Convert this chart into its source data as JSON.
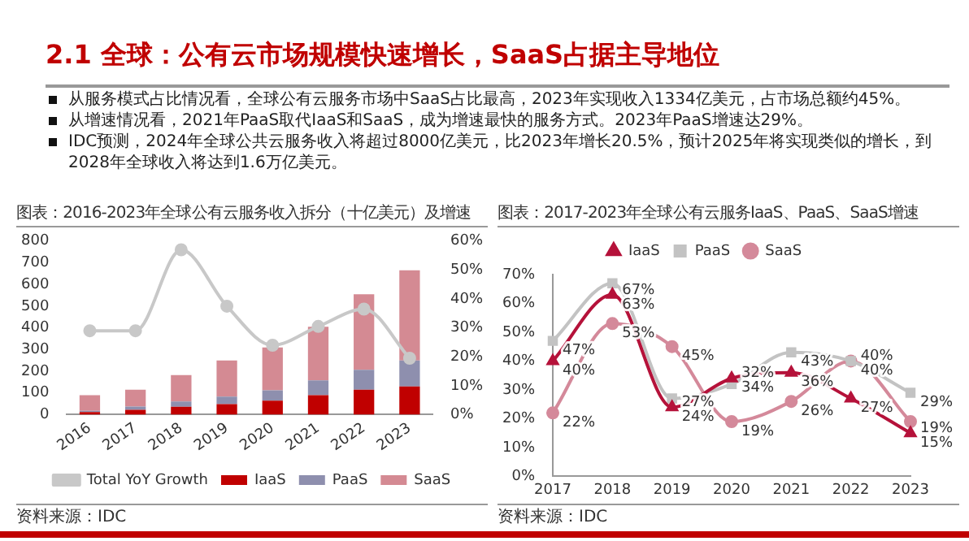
{
  "chart_data": [
    {
      "type": "other",
      "title": "2.1 全球：公有云市场规模快速增长，SaaS占据主导地位",
      "annotations": [
        "从服务模式占比情况看，全球公有云服务市场中SaaS占比最高，2023年实现收入1334亿美元，占市场总额约45%。",
        "从增速情况看，2021年PaaS取代IaaS和SaaS，成为增速最快的服务方式。2023年PaaS增速达29%。",
        "IDC预测，2024年全球公共云服务收入将超过8000亿美元，比2023年增长20.5%，预计2025年将实现类似的增长，到2028年全球收入将达到1.6万亿美元。"
      ]
    },
    {
      "type": "bar",
      "title": "图表：2016-2023年全球公有云服务收入拆分（十亿美元）及增速",
      "annotations": [
        "资料来源：IDC"
      ],
      "stacked": true,
      "grid": false,
      "legend": "bottom",
      "categories": [
        "2016",
        "2017",
        "2018",
        "2019",
        "2020",
        "2021",
        "2022",
        "2023"
      ],
      "series": [
        {
          "name": "IaaS",
          "color": "#c00000",
          "values": [
            12,
            22,
            36,
            48,
            64,
            90,
            115,
            130
          ]
        },
        {
          "name": "PaaS",
          "color": "#8e8fae",
          "values": [
            6,
            15,
            25,
            35,
            48,
            68,
            92,
            120
          ]
        },
        {
          "name": "SaaS",
          "color": "#d48a93",
          "values": [
            72,
            78,
            121,
            167,
            198,
            247,
            348,
            415
          ]
        },
        {
          "name": "Total YoY Growth",
          "type": "line",
          "axis": "y2",
          "marker": "circle",
          "color": "#c8c8c8",
          "values": [
            29,
            29,
            57,
            37.5,
            24,
            30.5,
            36.5,
            19.5
          ]
        }
      ],
      "ylim": [
        0,
        800
      ],
      "yticks": [
        0,
        100,
        200,
        300,
        400,
        500,
        600,
        700,
        800
      ],
      "y2lim": [
        0,
        60
      ],
      "y2ticks": [
        {
          "value": 0,
          "label": "0%"
        },
        {
          "value": 10,
          "label": "10%"
        },
        {
          "value": 20,
          "label": "20%"
        },
        {
          "value": 30,
          "label": "30%"
        },
        {
          "value": 40,
          "label": "40%"
        },
        {
          "value": 50,
          "label": "50%"
        },
        {
          "value": 60,
          "label": "60%"
        }
      ]
    },
    {
      "type": "line",
      "title": "图表：2017-2023年全球公有云服务IaaS、PaaS、SaaS增速",
      "annotations": [
        "资料来源：IDC"
      ],
      "grid": false,
      "legend": "top",
      "categories": [
        "2017",
        "2018",
        "2019",
        "2020",
        "2021",
        "2022",
        "2023"
      ],
      "series": [
        {
          "name": "IaaS",
          "color": "#b5123a",
          "marker": "triangle",
          "values": [
            40,
            63,
            24,
            34,
            36,
            27,
            15
          ],
          "value_labels": [
            "40%",
            "63%",
            "24%",
            "34%",
            "36%",
            "27%",
            "15%"
          ]
        },
        {
          "name": "PaaS",
          "color": "#c3c3c3",
          "marker": "square",
          "values": [
            47,
            67,
            27,
            32,
            43,
            40,
            29
          ],
          "value_labels": [
            "47%",
            "67%",
            "27%",
            "32%",
            "43%",
            "40%",
            "29%"
          ]
        },
        {
          "name": "SaaS",
          "color": "#d4899a",
          "marker": "circle",
          "values": [
            22,
            53,
            45,
            19,
            26,
            40,
            19
          ],
          "value_labels": [
            "22%",
            "53%",
            "45%",
            "19%",
            "26%",
            "40%",
            "19%"
          ]
        }
      ],
      "ylim": [
        0,
        70
      ],
      "yticks": [
        {
          "value": 0,
          "label": "0%"
        },
        {
          "value": 10,
          "label": "10%"
        },
        {
          "value": 20,
          "label": "20%"
        },
        {
          "value": 30,
          "label": "30%"
        },
        {
          "value": 40,
          "label": "40%"
        },
        {
          "value": 50,
          "label": "50%"
        },
        {
          "value": 60,
          "label": "60%"
        },
        {
          "value": 70,
          "label": "70%"
        }
      ]
    }
  ]
}
